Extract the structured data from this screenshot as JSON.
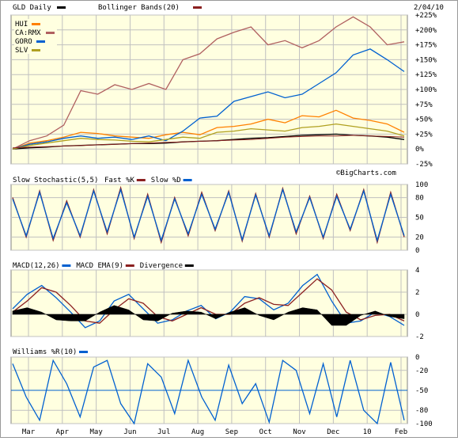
{
  "chart_data": [
    {
      "type": "line",
      "title": "GLD Daily",
      "overlay_label": "Bollinger Bands(20)",
      "date": "2/04/10",
      "watermark": "©BigCharts.com",
      "ylim": [
        -25,
        225
      ],
      "yticks": [
        -25,
        0,
        25,
        50,
        75,
        100,
        125,
        150,
        175,
        200,
        225
      ],
      "ytick_labels": [
        "-25%",
        "0%",
        "+25%",
        "+50%",
        "+75%",
        "+100%",
        "+125%",
        "+150%",
        "+175%",
        "+200%",
        "+225%"
      ],
      "grid": true,
      "legend_position": "top-left",
      "series": [
        {
          "name": "GLD Daily",
          "color": "#000000",
          "values": [
            0,
            2,
            3,
            5,
            6,
            7,
            8,
            9,
            9,
            10,
            12,
            13,
            14,
            16,
            18,
            19,
            21,
            23,
            24,
            25,
            23,
            22,
            20,
            16
          ]
        },
        {
          "name": "HUI",
          "color": "#ff8000",
          "values": [
            0,
            10,
            14,
            20,
            28,
            26,
            22,
            20,
            18,
            24,
            28,
            24,
            36,
            38,
            42,
            50,
            44,
            56,
            54,
            65,
            52,
            48,
            42,
            28
          ]
        },
        {
          "name": "CA:RMX",
          "color": "#b06060",
          "values": [
            0,
            14,
            22,
            40,
            98,
            92,
            108,
            100,
            110,
            100,
            150,
            160,
            185,
            196,
            205,
            175,
            182,
            170,
            182,
            205,
            222,
            205,
            175,
            180
          ]
        },
        {
          "name": "GORO",
          "color": "#0060d0",
          "values": [
            0,
            8,
            12,
            18,
            22,
            18,
            20,
            16,
            22,
            14,
            30,
            52,
            55,
            80,
            88,
            96,
            86,
            92,
            110,
            128,
            158,
            168,
            150,
            130
          ]
        },
        {
          "name": "SLV",
          "color": "#b0a020",
          "values": [
            0,
            6,
            10,
            14,
            18,
            16,
            15,
            13,
            12,
            16,
            20,
            18,
            28,
            30,
            34,
            32,
            30,
            36,
            38,
            42,
            38,
            34,
            30,
            22
          ]
        },
        {
          "name": "Bollinger Bands(20)",
          "color": "#8b2020",
          "values": [
            2,
            3,
            4,
            5,
            6,
            7,
            8,
            9,
            10,
            11,
            12,
            13,
            14,
            15,
            16,
            18,
            20,
            21,
            22,
            22,
            23,
            22,
            21,
            20
          ]
        }
      ]
    },
    {
      "type": "line",
      "title": "Slow Stochastic(5,5)",
      "ylim": [
        0,
        100
      ],
      "yticks": [
        0,
        20,
        50,
        80,
        100
      ],
      "ytick_labels": [
        "0",
        "20",
        "50",
        "80",
        "100"
      ],
      "series": [
        {
          "name": "Fast %K",
          "color": "#8b2020",
          "values": [
            80,
            20,
            90,
            15,
            75,
            20,
            92,
            25,
            95,
            18,
            85,
            12,
            80,
            22,
            88,
            30,
            90,
            14,
            86,
            20,
            94,
            25,
            82,
            18,
            85,
            30,
            92,
            12,
            88,
            20
          ]
        },
        {
          "name": "Slow %D",
          "color": "#0060d0",
          "values": [
            78,
            22,
            88,
            18,
            72,
            22,
            90,
            28,
            92,
            20,
            82,
            15,
            78,
            25,
            85,
            32,
            88,
            16,
            84,
            22,
            92,
            28,
            80,
            20,
            82,
            32,
            90,
            15,
            85,
            22
          ]
        }
      ]
    },
    {
      "type": "line",
      "title": "MACD(12,26)",
      "ylim": [
        -2,
        4
      ],
      "yticks": [
        -2,
        0,
        2,
        4
      ],
      "ytick_labels": [
        "-2",
        "0",
        "2",
        "4"
      ],
      "series": [
        {
          "name": "MACD(12,26)",
          "color": "#0060d0",
          "values": [
            0.5,
            1.8,
            2.6,
            1.5,
            0.2,
            -1.2,
            -0.6,
            1.2,
            1.8,
            0.5,
            -0.8,
            -0.5,
            0.3,
            0.8,
            -0.4,
            0.2,
            1.6,
            1.4,
            0.4,
            1.0,
            2.6,
            3.6,
            1.2,
            -0.8,
            -0.6,
            0.2,
            -0.2,
            -1.0
          ]
        },
        {
          "name": "MACD EMA(9)",
          "color": "#8b2020",
          "values": [
            0.2,
            1.2,
            2.4,
            2.0,
            0.8,
            -0.6,
            -0.8,
            0.4,
            1.4,
            1.0,
            -0.2,
            -0.6,
            0.0,
            0.6,
            0.0,
            0.0,
            1.0,
            1.5,
            0.9,
            0.8,
            2.0,
            3.2,
            2.2,
            0.2,
            -0.5,
            -0.1,
            0.0,
            -0.6
          ]
        },
        {
          "name": "Divergence",
          "color": "#000000",
          "values": [
            0.3,
            0.6,
            0.2,
            -0.5,
            -0.6,
            -0.6,
            0.2,
            0.8,
            0.4,
            -0.5,
            -0.6,
            0.1,
            0.3,
            0.2,
            -0.4,
            0.2,
            0.6,
            -0.1,
            -0.5,
            0.2,
            0.6,
            0.4,
            -1.0,
            -1.0,
            -0.1,
            0.3,
            -0.2,
            -0.4
          ]
        }
      ]
    },
    {
      "type": "line",
      "title": "Williams %R(10)",
      "ylim": [
        -100,
        0
      ],
      "yticks": [
        -100,
        -80,
        -50,
        -20,
        0
      ],
      "ytick_labels": [
        "-100",
        "-80",
        "-50",
        "-20",
        "0"
      ],
      "series": [
        {
          "name": "Williams %R(10)",
          "color": "#0060d0",
          "values": [
            -10,
            -60,
            -95,
            -5,
            -40,
            -90,
            -15,
            -5,
            -70,
            -100,
            -10,
            -30,
            -85,
            -5,
            -60,
            -95,
            -12,
            -70,
            -40,
            -98,
            -5,
            -20,
            -85,
            -10,
            -90,
            -5,
            -80,
            -100,
            -8,
            -95
          ]
        }
      ]
    }
  ],
  "x_axis": {
    "labels": [
      "Mar",
      "Apr",
      "May",
      "Jun",
      "Jul",
      "Aug",
      "Sep",
      "Oct",
      "Nov",
      "Dec",
      "10",
      "Feb"
    ]
  }
}
